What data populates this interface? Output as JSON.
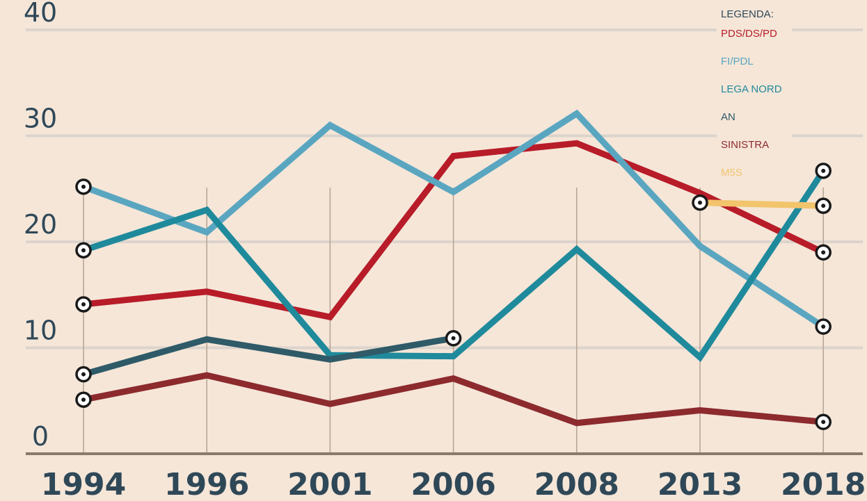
{
  "chart_data": {
    "type": "line",
    "title": "",
    "xlabel": "",
    "ylabel": "",
    "categories": [
      "1994",
      "1996",
      "2001",
      "2006",
      "2008",
      "2013",
      "2018"
    ],
    "y_ticks": [
      "0",
      "10",
      "20",
      "30",
      "40"
    ],
    "ylim": [
      0,
      40
    ],
    "grid": true,
    "legend": {
      "title": "LEGENDA:",
      "placement": "top-right"
    },
    "series": [
      {
        "name": "PDS/DS/PD",
        "color": "#b71c28",
        "values": [
          14.1,
          15.3,
          12.9,
          28.1,
          29.3,
          24.6,
          19.0
        ],
        "endpoint_markers": [
          0,
          6
        ]
      },
      {
        "name": "FI/PDL",
        "color": "#5aa6c0",
        "values": [
          25.2,
          20.9,
          31.0,
          24.7,
          32.1,
          19.6,
          12.0
        ],
        "endpoint_markers": [
          0,
          6
        ]
      },
      {
        "name": "LEGA NORD",
        "color": "#1f8a9b",
        "values": [
          19.2,
          23.0,
          9.3,
          9.2,
          19.3,
          9.1,
          26.7
        ],
        "endpoint_markers": [
          0,
          6
        ]
      },
      {
        "name": "AN",
        "color": "#2f5a68",
        "values": [
          7.5,
          10.8,
          8.9,
          10.9,
          null,
          null,
          null
        ],
        "endpoint_markers": [
          0,
          3
        ]
      },
      {
        "name": "SINISTRA",
        "color": "#8c2a2e",
        "values": [
          5.1,
          7.4,
          4.7,
          7.1,
          2.9,
          4.1,
          3.0
        ],
        "endpoint_markers": [
          0,
          6
        ]
      },
      {
        "name": "M5S",
        "color": "#f2c46c",
        "values": [
          null,
          null,
          null,
          null,
          null,
          23.7,
          23.4
        ],
        "endpoint_markers": [
          5,
          6
        ]
      }
    ]
  }
}
